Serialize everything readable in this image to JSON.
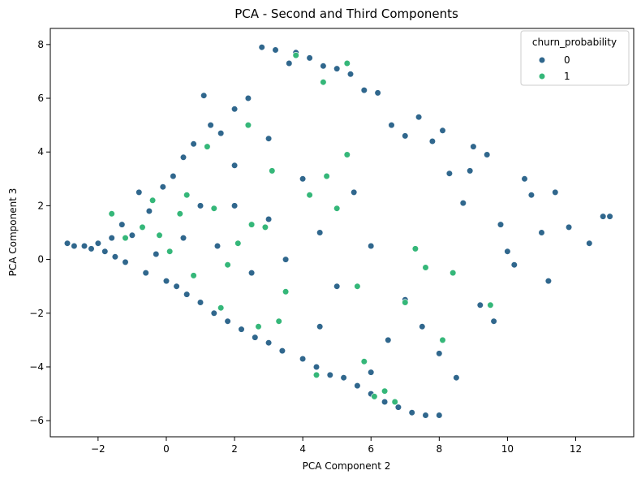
{
  "chart_data": {
    "type": "scatter",
    "title": "PCA - Second and Third Components",
    "xlabel": "PCA Component 2",
    "ylabel": "PCA Component 3",
    "xlim": [
      -3.4,
      13.7
    ],
    "ylim": [
      -6.6,
      8.6
    ],
    "xticks": [
      -2,
      0,
      2,
      4,
      6,
      8,
      10,
      12
    ],
    "xtick_labels": [
      "−2",
      "0",
      "2",
      "4",
      "6",
      "8",
      "10",
      "12"
    ],
    "yticks": [
      -6,
      -4,
      -2,
      0,
      2,
      4,
      6,
      8
    ],
    "ytick_labels": [
      "−6",
      "−4",
      "−2",
      "0",
      "2",
      "4",
      "6",
      "8"
    ],
    "grid": false,
    "legend": {
      "title": "churn_probability",
      "placement": "top-right",
      "entries": [
        {
          "label": "0",
          "color": "#30678d"
        },
        {
          "label": "1",
          "color": "#35b779"
        }
      ]
    },
    "series": [
      {
        "name": "0",
        "color": "#30678d",
        "points": [
          [
            -2.9,
            0.6
          ],
          [
            -2.7,
            0.5
          ],
          [
            -2.4,
            0.5
          ],
          [
            -2.2,
            0.4
          ],
          [
            -2.0,
            0.6
          ],
          [
            -1.8,
            0.3
          ],
          [
            -1.6,
            0.8
          ],
          [
            -1.5,
            0.1
          ],
          [
            -1.3,
            1.3
          ],
          [
            -1.2,
            -0.1
          ],
          [
            -1.0,
            0.9
          ],
          [
            -0.8,
            2.5
          ],
          [
            -0.6,
            -0.5
          ],
          [
            -0.5,
            1.8
          ],
          [
            -0.3,
            0.2
          ],
          [
            -0.1,
            2.7
          ],
          [
            0.0,
            -0.8
          ],
          [
            0.2,
            3.1
          ],
          [
            0.3,
            -1.0
          ],
          [
            0.5,
            3.8
          ],
          [
            0.6,
            -1.3
          ],
          [
            0.8,
            4.3
          ],
          [
            1.0,
            -1.6
          ],
          [
            1.1,
            6.1
          ],
          [
            1.3,
            5.0
          ],
          [
            1.4,
            -2.0
          ],
          [
            1.6,
            4.7
          ],
          [
            1.8,
            -2.3
          ],
          [
            2.0,
            5.6
          ],
          [
            2.2,
            -2.6
          ],
          [
            2.4,
            6.0
          ],
          [
            2.6,
            -2.9
          ],
          [
            2.8,
            7.9
          ],
          [
            3.0,
            -3.1
          ],
          [
            3.2,
            7.8
          ],
          [
            3.4,
            -3.4
          ],
          [
            3.6,
            7.3
          ],
          [
            3.8,
            7.7
          ],
          [
            4.0,
            -3.7
          ],
          [
            4.2,
            7.5
          ],
          [
            4.4,
            -4.0
          ],
          [
            4.6,
            7.2
          ],
          [
            4.8,
            -4.3
          ],
          [
            5.0,
            7.1
          ],
          [
            5.2,
            -4.4
          ],
          [
            5.4,
            6.9
          ],
          [
            5.6,
            -4.7
          ],
          [
            5.8,
            6.3
          ],
          [
            6.0,
            -5.0
          ],
          [
            6.2,
            6.2
          ],
          [
            6.4,
            -5.3
          ],
          [
            6.6,
            5.0
          ],
          [
            6.8,
            -5.5
          ],
          [
            7.0,
            4.6
          ],
          [
            7.2,
            -5.7
          ],
          [
            7.4,
            5.3
          ],
          [
            7.6,
            -5.8
          ],
          [
            7.8,
            4.4
          ],
          [
            8.0,
            -5.8
          ],
          [
            8.1,
            4.8
          ],
          [
            8.3,
            3.2
          ],
          [
            8.5,
            -4.4
          ],
          [
            8.7,
            2.1
          ],
          [
            8.9,
            3.3
          ],
          [
            9.0,
            4.2
          ],
          [
            9.2,
            -1.7
          ],
          [
            9.4,
            3.9
          ],
          [
            9.6,
            -2.3
          ],
          [
            9.8,
            1.3
          ],
          [
            10.0,
            0.3
          ],
          [
            10.2,
            -0.2
          ],
          [
            10.5,
            3.0
          ],
          [
            10.7,
            2.4
          ],
          [
            11.0,
            1.0
          ],
          [
            11.2,
            -0.8
          ],
          [
            11.4,
            2.5
          ],
          [
            11.8,
            1.2
          ],
          [
            12.4,
            0.6
          ],
          [
            12.8,
            1.6
          ],
          [
            13.0,
            1.6
          ],
          [
            2.0,
            2.0
          ],
          [
            3.0,
            1.5
          ],
          [
            1.5,
            0.5
          ],
          [
            2.5,
            -0.5
          ],
          [
            3.5,
            0.0
          ],
          [
            4.5,
            1.0
          ],
          [
            5.0,
            -1.0
          ],
          [
            6.0,
            0.5
          ],
          [
            7.0,
            -1.5
          ],
          [
            5.5,
            2.5
          ],
          [
            4.0,
            3.0
          ],
          [
            3.0,
            4.5
          ],
          [
            2.0,
            3.5
          ],
          [
            1.0,
            2.0
          ],
          [
            0.5,
            0.8
          ],
          [
            4.5,
            -2.5
          ],
          [
            6.5,
            -3.0
          ],
          [
            7.5,
            -2.5
          ],
          [
            8.0,
            -3.5
          ],
          [
            6.0,
            -4.2
          ]
        ]
      },
      {
        "name": "1",
        "color": "#35b779",
        "points": [
          [
            -1.6,
            1.7
          ],
          [
            -1.2,
            0.8
          ],
          [
            -0.7,
            1.2
          ],
          [
            -0.4,
            2.2
          ],
          [
            -0.2,
            0.9
          ],
          [
            0.1,
            0.3
          ],
          [
            0.4,
            1.7
          ],
          [
            0.6,
            2.4
          ],
          [
            0.8,
            -0.6
          ],
          [
            1.2,
            4.2
          ],
          [
            1.4,
            1.9
          ],
          [
            1.6,
            -1.8
          ],
          [
            1.8,
            -0.2
          ],
          [
            2.1,
            0.6
          ],
          [
            2.4,
            5.0
          ],
          [
            2.5,
            1.3
          ],
          [
            2.7,
            -2.5
          ],
          [
            2.9,
            1.2
          ],
          [
            3.1,
            3.3
          ],
          [
            3.5,
            -1.2
          ],
          [
            3.8,
            7.6
          ],
          [
            4.2,
            2.4
          ],
          [
            4.4,
            -4.3
          ],
          [
            4.7,
            3.1
          ],
          [
            5.0,
            1.9
          ],
          [
            5.3,
            7.3
          ],
          [
            5.6,
            -1.0
          ],
          [
            5.8,
            -3.8
          ],
          [
            6.1,
            -5.1
          ],
          [
            6.4,
            -4.9
          ],
          [
            6.7,
            -5.3
          ],
          [
            7.0,
            -1.6
          ],
          [
            7.3,
            0.4
          ],
          [
            7.6,
            -0.3
          ],
          [
            8.1,
            -3.0
          ],
          [
            8.4,
            -0.5
          ],
          [
            9.5,
            -1.7
          ],
          [
            4.6,
            6.6
          ],
          [
            3.3,
            -2.3
          ],
          [
            5.3,
            3.9
          ]
        ]
      }
    ]
  }
}
